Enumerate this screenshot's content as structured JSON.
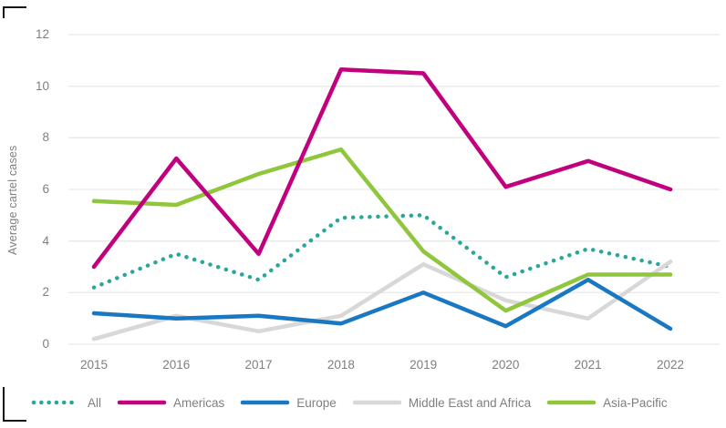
{
  "chart_data": {
    "type": "line",
    "title": "",
    "xlabel": "",
    "ylabel": "Average cartel cases",
    "x": [
      "2015",
      "2016",
      "2017",
      "2018",
      "2019",
      "2020",
      "2021",
      "2022"
    ],
    "ylim": [
      0,
      12
    ],
    "yticks": [
      0,
      2,
      4,
      6,
      8,
      10,
      12
    ],
    "ytick_labels_top_down": [
      "12",
      "10",
      "8",
      "6",
      "4",
      "2",
      "0"
    ],
    "grid": "horizontal-only",
    "legend_position": "bottom",
    "series": [
      {
        "name": "All",
        "style": "dotted",
        "color": "#2aa79a",
        "values": [
          2.2,
          3.5,
          2.5,
          4.9,
          5.0,
          2.6,
          3.7,
          3.0
        ]
      },
      {
        "name": "Americas",
        "style": "solid",
        "color": "#c1007e",
        "values": [
          3.0,
          7.2,
          3.5,
          10.65,
          10.5,
          6.1,
          7.1,
          6.0
        ]
      },
      {
        "name": "Europe",
        "style": "solid",
        "color": "#1a78c2",
        "values": [
          1.2,
          1.0,
          1.1,
          0.8,
          2.0,
          0.7,
          2.5,
          0.6
        ]
      },
      {
        "name": "Middle East and Africa",
        "style": "solid",
        "color": "#d8d8d8",
        "values": [
          0.2,
          1.1,
          0.5,
          1.1,
          3.1,
          1.7,
          1.0,
          3.2
        ]
      },
      {
        "name": "Asia-Pacific",
        "style": "solid",
        "color": "#90c63c",
        "values": [
          5.55,
          5.4,
          6.6,
          7.55,
          3.6,
          1.3,
          2.7,
          2.7
        ]
      }
    ],
    "z_order": [
      "All",
      "Middle East and Africa",
      "Europe",
      "Asia-Pacific",
      "Americas"
    ]
  },
  "colors": {
    "axis_text": "#7f7f7f",
    "gridline": "#e9e9e9",
    "background": "#ffffff",
    "border_mark": "#161616"
  }
}
